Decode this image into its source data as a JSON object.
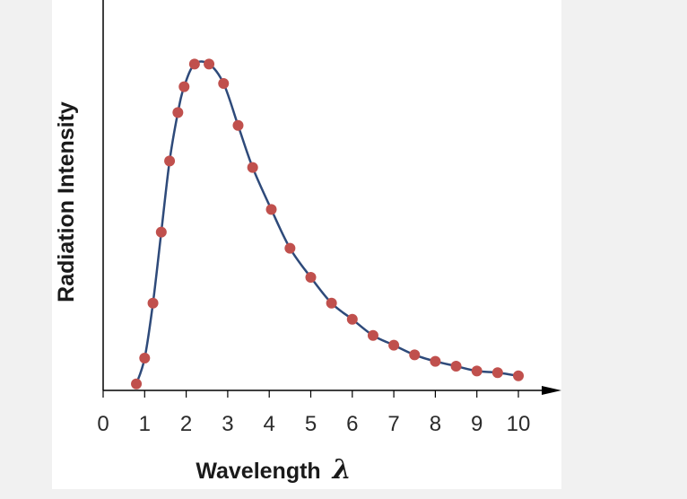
{
  "chart_data": {
    "type": "line",
    "title": "",
    "xlabel": "Wavelength",
    "xlabel_symbol": "λ",
    "ylabel": "Radiation Intensity",
    "xlim": [
      0,
      10
    ],
    "ylim": [
      0,
      1
    ],
    "grid": false,
    "x_ticks": [
      "0",
      "1",
      "2",
      "3",
      "4",
      "5",
      "6",
      "7",
      "8",
      "9",
      "10"
    ],
    "y_axis_ticks": false,
    "colors": {
      "line": "#2e4a7a",
      "points": "#c0504d",
      "axis": "#000000"
    },
    "series": [
      {
        "x": [
          0.8,
          1.0,
          1.2,
          1.4,
          1.6,
          1.8,
          1.95,
          2.2,
          2.55,
          2.9,
          3.25,
          3.6,
          4.05,
          4.5,
          5.0,
          5.5,
          6.0,
          6.5,
          7.0,
          7.5,
          8.0,
          8.5,
          9.0,
          9.5,
          10.0
        ],
        "y": [
          0.02,
          0.1,
          0.27,
          0.49,
          0.71,
          0.86,
          0.94,
          1.01,
          1.01,
          0.95,
          0.82,
          0.69,
          0.56,
          0.44,
          0.35,
          0.27,
          0.22,
          0.17,
          0.14,
          0.11,
          0.09,
          0.075,
          0.06,
          0.055,
          0.045
        ]
      }
    ]
  }
}
